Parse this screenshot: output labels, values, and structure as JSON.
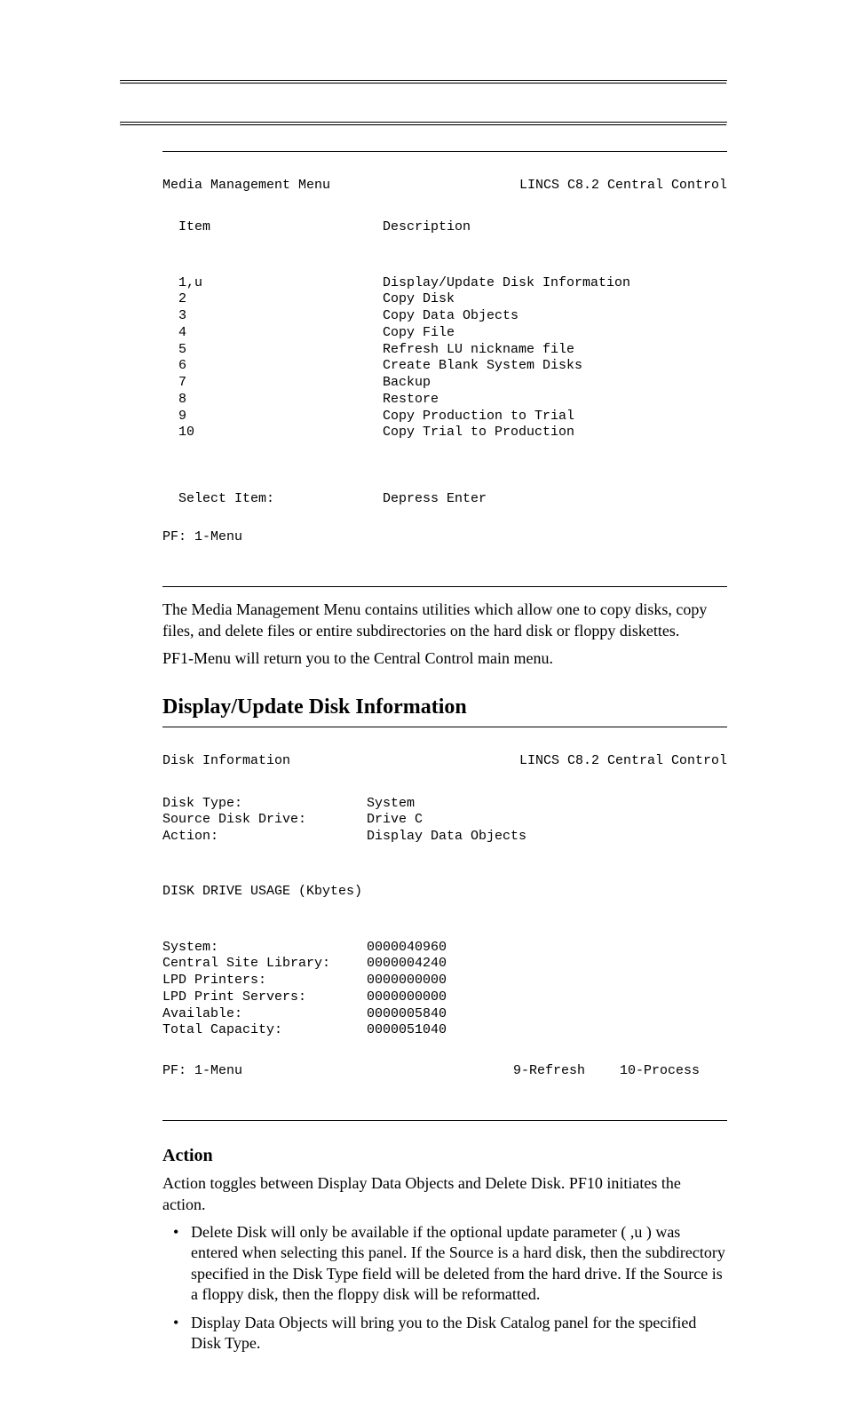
{
  "menu1": {
    "title_left": "Media Management Menu",
    "title_right": "LINCS C8.2 Central Control",
    "col_item": "Item",
    "col_desc": "Description",
    "items": [
      {
        "n": "1,u",
        "d": "Display/Update Disk Information"
      },
      {
        "n": "2",
        "d": "Copy Disk"
      },
      {
        "n": "3",
        "d": "Copy Data Objects"
      },
      {
        "n": "4",
        "d": "Copy File"
      },
      {
        "n": "5",
        "d": "Refresh LU nickname file"
      },
      {
        "n": "6",
        "d": "Create Blank System Disks"
      },
      {
        "n": "7",
        "d": "Backup"
      },
      {
        "n": "8",
        "d": "Restore"
      },
      {
        "n": "9",
        "d": "Copy Production to Trial"
      },
      {
        "n": "10",
        "d": "Copy Trial to Production"
      }
    ],
    "select_label": "Select Item:",
    "select_action": "Depress Enter",
    "pf": "PF: 1-Menu"
  },
  "para1": "The Media Management Menu contains utilities which allow one to copy disks, copy files, and delete files or entire subdirectories on the hard disk or floppy diskettes.",
  "para2": "PF1-Menu will return you to the Central Control main menu.",
  "section_heading": "Display/Update Disk Information",
  "menu2": {
    "title_left": "Disk Information",
    "title_right": "LINCS C8.2 Central Control",
    "fields": [
      {
        "l": "Disk Type:",
        "v": "System"
      },
      {
        "l": "Source Disk Drive:",
        "v": "Drive C"
      },
      {
        "l": "Action:",
        "v": "Display Data Objects"
      }
    ],
    "usage_label": "DISK DRIVE USAGE (Kbytes)",
    "usage_rows": [
      {
        "l": "System:",
        "v": "0000040960"
      },
      {
        "l": "Central Site Library:",
        "v": "0000004240"
      },
      {
        "l": "LPD Printers:",
        "v": "0000000000"
      },
      {
        "l": "LPD Print Servers:",
        "v": "0000000000"
      },
      {
        "l": "Available:",
        "v": "0000005840"
      },
      {
        "l": "Total Capacity:",
        "v": "0000051040"
      }
    ],
    "pf_left": "PF: 1-Menu",
    "pf_mid": "9-Refresh",
    "pf_right": "10-Process"
  },
  "action_heading": "Action",
  "action_intro": "Action toggles between Display Data Objects and Delete Disk. PF10 initiates the action.",
  "bullets": [
    "Delete Disk will only be available if the optional update parameter ( ,u ) was entered when selecting this panel. If the Source is a hard disk, then the subdirectory specified in the Disk Type field will be deleted from the hard drive. If the Source is a floppy disk, then the floppy disk will be reformatted.",
    "Display Data Objects will bring you to the Disk Catalog panel for the specified Disk Type."
  ]
}
